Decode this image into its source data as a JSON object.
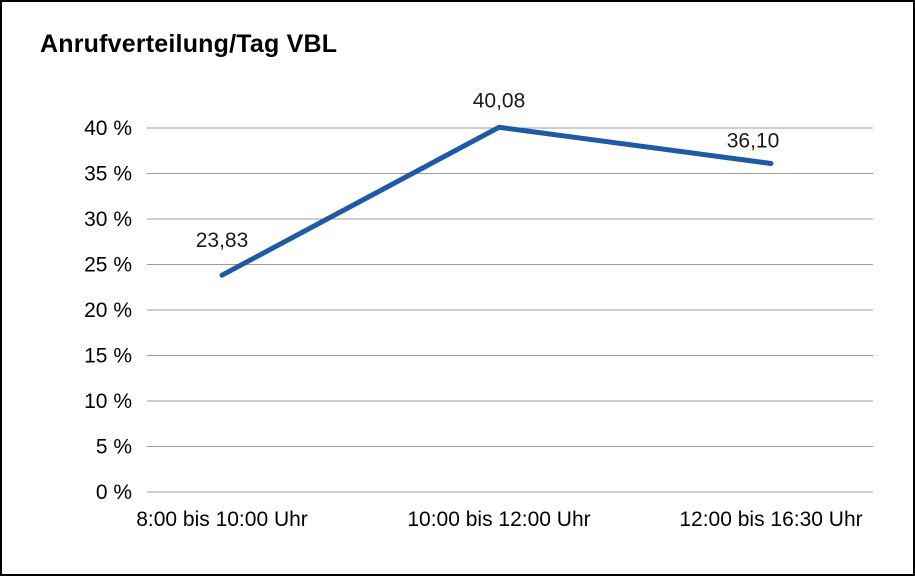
{
  "frame": {
    "background": "#ffffff",
    "border_color": "#000000"
  },
  "chart_data": {
    "type": "line",
    "title": "Anrufverteilung/Tag VBL",
    "categories": [
      "8:00 bis 10:00 Uhr",
      "10:00 bis 12:00 Uhr",
      "12:00 bis 16:30 Uhr"
    ],
    "values": [
      23.83,
      40.08,
      36.1
    ],
    "value_labels": [
      "23,83",
      "40,08",
      "36,10"
    ],
    "xlabel": "",
    "ylabel": "",
    "ylim": [
      0,
      40
    ],
    "ytick_step": 5,
    "ytick_labels": [
      "0 %",
      "5 %",
      "10 %",
      "15 %",
      "20 %",
      "25 %",
      "30 %",
      "35 %",
      "40 %"
    ],
    "grid": true,
    "legend": "none",
    "line_color": "#1e5aa5",
    "gridline_color": "#9c9c9c"
  }
}
